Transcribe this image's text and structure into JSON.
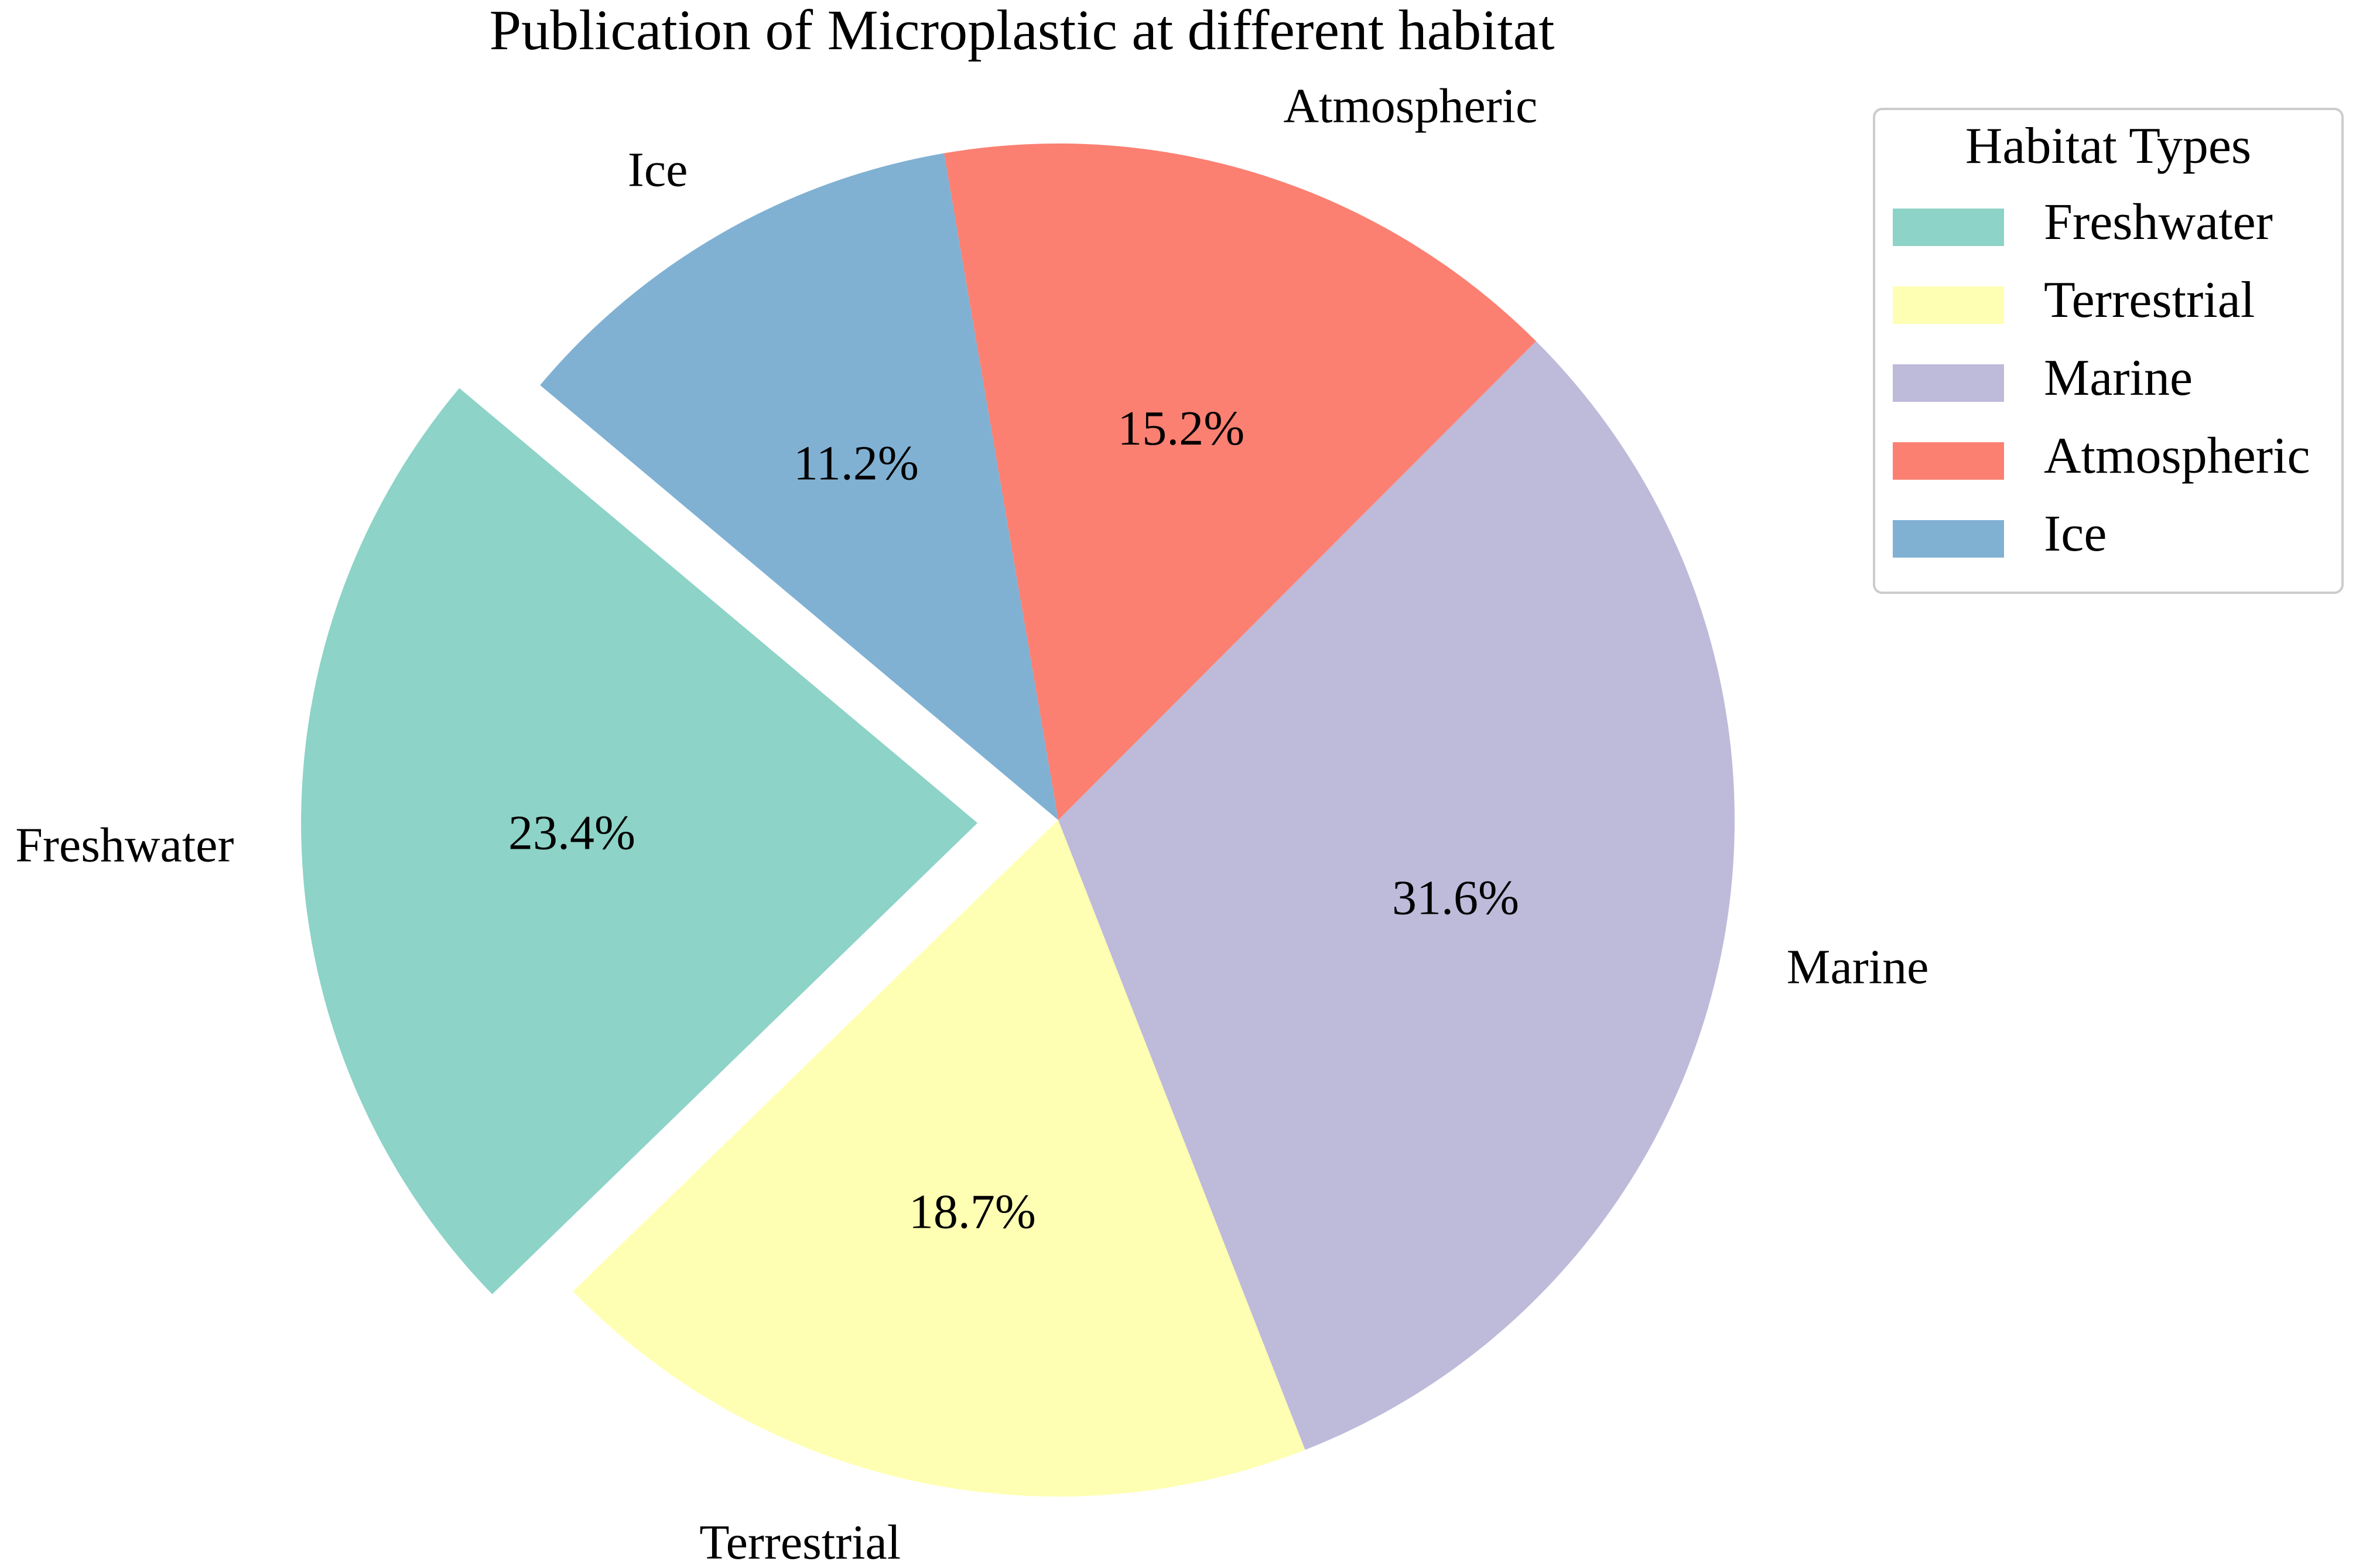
{
  "chart_data": {
    "type": "pie",
    "title": "Publication of Microplastic at different habitat",
    "categories": [
      "Freshwater",
      "Terrestrial",
      "Marine",
      "Atmospheric",
      "Ice"
    ],
    "values": [
      23.4,
      18.7,
      31.6,
      15.2,
      11.2
    ],
    "value_labels": [
      "23.4%",
      "18.7%",
      "31.6%",
      "15.2%",
      "11.2%"
    ],
    "colors": [
      "#8dd3c7",
      "#ffffb3",
      "#bebada",
      "#fb8072",
      "#80b1d3"
    ],
    "exploded": [
      "Freshwater"
    ],
    "legend": {
      "title": "Habitat Types",
      "placement": "top-right",
      "entries": [
        "Freshwater",
        "Terrestrial",
        "Marine",
        "Atmospheric",
        "Ice"
      ]
    }
  }
}
